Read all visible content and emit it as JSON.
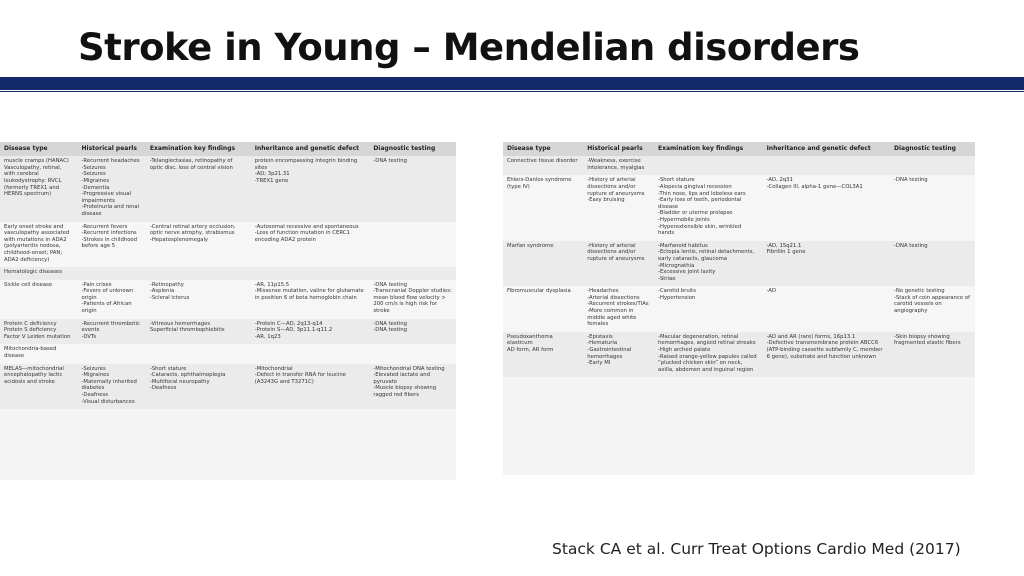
{
  "title": "Stroke in Young – Mendelian disorders",
  "citation": "Stack CA et al. Curr Treat Options Cardio Med (2017)",
  "tables": [
    {
      "headers": [
        "Disease type",
        "Historical pearls",
        "Examination key findings",
        "Inheritance and genetic defect",
        "Diagnostic testing"
      ],
      "rows": [
        [
          [
            "muscle cramps (HANAC)",
            "Vasculopathy, retinal, with cerebral leukodystrophy: RVCL (formerly TREX1 and HERNS spectrum)"
          ],
          [
            "-Recurrent headaches",
            "-Seizures",
            "-Seizures",
            "-Migraines",
            "-Dementia",
            "-Progressive visual impairments",
            "-Proteinuria and renal disease"
          ],
          [
            "-Telangiectasias, retinopathy of optic disc, loss of central vision"
          ],
          [
            "protein encompassing integrin binding sites",
            "-AD; 3p21.31",
            "-TREX1 gene"
          ],
          [
            "-DNA testing"
          ]
        ],
        [
          [
            "Early onset stroke and vasculopathy associated with mutations in ADA2 (polyarteritis nodosa, childhood-onset; PAN; ADA2 deficiency)"
          ],
          [
            "-Recurrent fevers",
            "-Recurrent infections",
            "-Strokes in childhood before age 5"
          ],
          [
            "-Central retinal artery occlusion, optic nerve atrophy, strabismus",
            "-Hepatosplenomegaly"
          ],
          [
            "-Autosomal recessive and spontaneous",
            "-Loss of function mutation in CERC1 encoding ADA2 protein"
          ],
          []
        ],
        [
          [
            "Hematologic diseases"
          ],
          [],
          [],
          [],
          []
        ],
        [
          [
            "Sickle cell disease"
          ],
          [
            "-Pain crises",
            "-Fevers of unknown origin",
            "-Patients of African origin"
          ],
          [
            "-Retinopathy",
            "-Asplenia",
            "-Scleral icterus"
          ],
          [
            "-AR, 11p15.5",
            "-Missense mutation, valine for glutamate in position 6 of beta hemoglobin chain"
          ],
          [
            "-DNA testing",
            "-Transcranial Doppler studies: mean blood flow velocity > 200 cm/s is high risk for stroke"
          ]
        ],
        [
          [
            "Protein C deficiency",
            "Protein S deficiency",
            "Factor V Leiden mutation"
          ],
          [
            "-Recurrent thrombotic events",
            "-DVTs"
          ],
          [
            "-Vitreous hemorrhages",
            "Superficial thrombophlebitis"
          ],
          [
            "-Protein C—AD, 2q13-q14",
            "-Protein S—AD, 3p11.1-q11.2",
            "-AR, 1q23"
          ],
          [
            "-DNA testing",
            "-DNA testing"
          ]
        ],
        [
          [
            "Mitochondria-based disease"
          ],
          [],
          [],
          [],
          []
        ],
        [
          [
            "MELAS—mitochondrial encephalopathy lactic acidosis and stroke"
          ],
          [
            "-Seizures",
            "-Migraines",
            "-Maternally inherited diabetes",
            "-Deafness",
            "-Visual disturbances"
          ],
          [
            "-Short stature",
            "-Cataracts, ophthalmoplegia",
            "-Multifocal neuropathy",
            "-Deafness"
          ],
          [
            "-Mitochondrial",
            "-Defect in transfer RNA for leucine (A3243G and T3271C)"
          ],
          [
            "-Mitochondrial DNA testing",
            "-Elevated lactate and pyruvate",
            "-Muscle biopsy showing ragged red fibers"
          ]
        ]
      ]
    },
    {
      "headers": [
        "Disease type",
        "Historical pearls",
        "Examination key findings",
        "Inheritance and genetic defect",
        "Diagnostic testing"
      ],
      "rows": [
        [
          [
            "Connective tissue disorder"
          ],
          [
            "-Weakness, exercise intolerance, myalgias"
          ],
          [],
          [],
          []
        ],
        [
          [
            "Ehlers-Danlos syndrome (type IV)"
          ],
          [
            "-History of arterial dissections and/or rupture of aneurysms",
            "-Easy bruising"
          ],
          [
            "-Short stature",
            "-Alopecia gingival recession",
            "-Thin nose, lips and lobeless ears",
            "-Early loss of teeth, periodontal disease",
            "-Bladder or uterine prolapse",
            "-Hypermobile joints",
            "-Hyperextensible skin, wrinkled hands"
          ],
          [
            "-AD, 2q31",
            "-Collagen III, alpha-1 gene—COL3A1"
          ],
          [
            "-DNA testing"
          ]
        ],
        [
          [
            "Marfan syndrome"
          ],
          [
            "-History of arterial dissections and/or rupture of aneurysms"
          ],
          [
            "-Marfanoid habitus",
            "-Ectopia lentis, retinal detachments, early cataracts, glaucoma",
            "-Micrognathia",
            "-Excessive joint laxity",
            "-Striae"
          ],
          [
            "-AD, 15q21.1",
            "Fibrillin 1 gene"
          ],
          [
            "-DNA testing"
          ]
        ],
        [
          [
            "Fibromuscular dysplasia"
          ],
          [
            "-Headaches",
            "-Arterial dissections",
            "-Recurrent strokes/TIAs",
            "-More common in middle aged white females"
          ],
          [
            "-Carotid bruits",
            "-Hypertension"
          ],
          [
            "-AD"
          ],
          [
            "-No genetic testing",
            "-Stack of coin appearance of carotid vessels on angiography"
          ]
        ],
        [
          [
            "Pseudoxanthoma elasticum",
            "AD form, AR form"
          ],
          [
            "-Epistaxis",
            "-Hematuria",
            "-Gastrointestinal hemorrhages",
            "-Early MI"
          ],
          [
            "-Macular degeneration, retinal hemorrhages, angioid retinal streaks",
            "-High arched palate",
            "-Raised orange-yellow papules called “plucked chicken skin” on neck, axilla, abdomen and inguinal region"
          ],
          [
            "-AD and AR (rare) forms, 16p13.1",
            "-Defective transmembrane protein ABCC6 (ATP-binding cassette subfamily C, member 6 gene), substrate and function unknown"
          ],
          [
            "-Skin biopsy showing fragmented elastic fibers"
          ]
        ]
      ]
    }
  ]
}
